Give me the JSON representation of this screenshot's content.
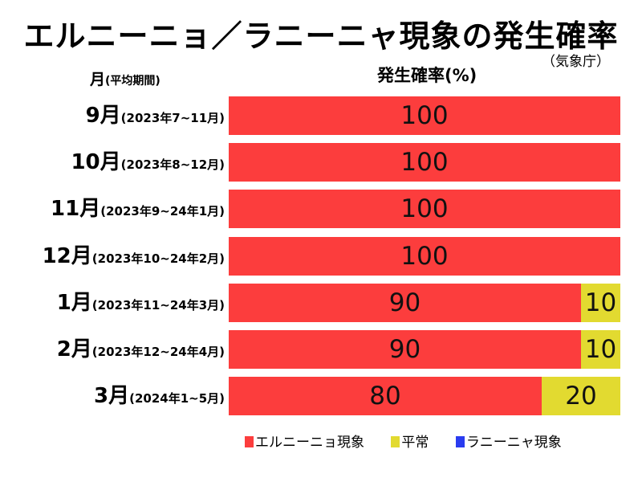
{
  "title": "エルニーニョ／ラニーニャ現象の発生確率",
  "source": "（気象庁）",
  "header": {
    "month_label": "月",
    "month_sub": "(平均期間)",
    "value_label": "発生確率(%)"
  },
  "colors": {
    "el_nino": "#fc3d3d",
    "normal": "#e2da30",
    "la_nina": "#2a3cf0"
  },
  "chart_data": {
    "type": "bar",
    "orientation": "horizontal",
    "stacked": true,
    "title": "エルニーニョ／ラニーニャ現象の発生確率",
    "xlabel": "発生確率(%)",
    "ylabel": "月(平均期間)",
    "xlim": [
      0,
      100
    ],
    "legend_position": "bottom",
    "rows": [
      {
        "month": "9月",
        "period": "(2023年7~11月)"
      },
      {
        "month": "10月",
        "period": "(2023年8~12月)"
      },
      {
        "month": "11月",
        "period": "(2023年9~24年1月)"
      },
      {
        "month": "12月",
        "period": "(2023年10~24年2月)"
      },
      {
        "month": "1月",
        "period": "(2023年11~24年3月)"
      },
      {
        "month": "2月",
        "period": "(2023年12~24年4月)"
      },
      {
        "month": "3月",
        "period": "(2024年1~5月)"
      }
    ],
    "series": [
      {
        "key": "el_nino",
        "name": "エルニーニョ現象",
        "values": [
          100,
          100,
          100,
          100,
          90,
          90,
          80
        ]
      },
      {
        "key": "normal",
        "name": "平常",
        "values": [
          0,
          0,
          0,
          0,
          10,
          10,
          20
        ]
      },
      {
        "key": "la_nina",
        "name": "ラニーニャ現象",
        "values": [
          0,
          0,
          0,
          0,
          0,
          0,
          0
        ]
      }
    ]
  }
}
